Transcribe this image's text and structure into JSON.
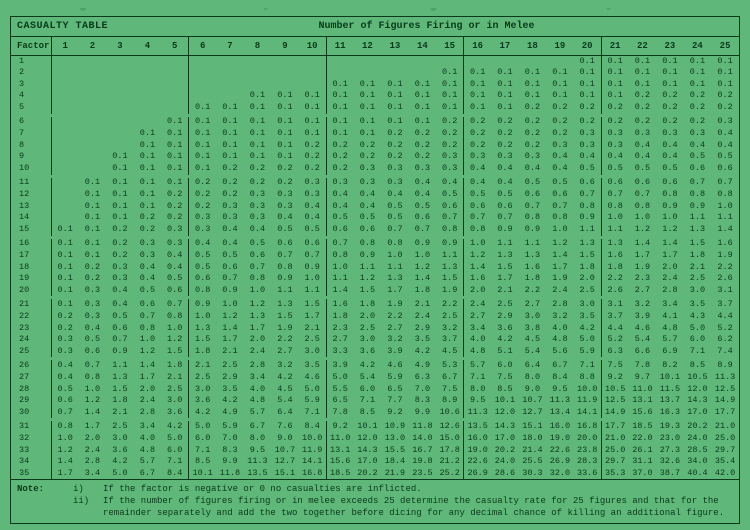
{
  "title_left": "CASUALTY TABLE",
  "title_center": "Number of Figures Firing or in Melee",
  "factor_label": "Factor",
  "columns": [
    1,
    2,
    3,
    4,
    5,
    6,
    7,
    8,
    9,
    10,
    11,
    12,
    13,
    14,
    15,
    16,
    17,
    18,
    19,
    20,
    21,
    22,
    23,
    24,
    25
  ],
  "rows": [
    {
      "f": 1,
      "v": [
        "",
        "",
        "",
        "",
        "",
        "",
        "",
        "",
        "",
        "",
        "",
        "",
        "",
        "",
        "",
        "",
        "",
        "",
        "",
        "0.1",
        "0.1",
        "0.1",
        "0.1",
        "0.1",
        "0.1"
      ]
    },
    {
      "f": 2,
      "v": [
        "",
        "",
        "",
        "",
        "",
        "",
        "",
        "",
        "",
        "",
        "",
        "",
        "",
        "",
        "0.1",
        "0.1",
        "0.1",
        "0.1",
        "0.1",
        "0.1",
        "0.1",
        "0.1",
        "0.1",
        "0.1",
        "0.1"
      ]
    },
    {
      "f": 3,
      "v": [
        "",
        "",
        "",
        "",
        "",
        "",
        "",
        "",
        "",
        "",
        "0.1",
        "0.1",
        "0.1",
        "0.1",
        "0.1",
        "0.1",
        "0.1",
        "0.1",
        "0.1",
        "0.1",
        "0.1",
        "0.1",
        "0.1",
        "0.1",
        "0.1"
      ]
    },
    {
      "f": 4,
      "v": [
        "",
        "",
        "",
        "",
        "",
        "",
        "",
        "0.1",
        "0.1",
        "0.1",
        "0.1",
        "0.1",
        "0.1",
        "0.1",
        "0.1",
        "0.1",
        "0.1",
        "0.1",
        "0.1",
        "0.1",
        "0.1",
        "0.2",
        "0.2",
        "0.2",
        "0.2"
      ]
    },
    {
      "f": 5,
      "v": [
        "",
        "",
        "",
        "",
        "",
        "0.1",
        "0.1",
        "0.1",
        "0.1",
        "0.1",
        "0.1",
        "0.1",
        "0.1",
        "0.1",
        "0.1",
        "0.1",
        "0.1",
        "0.2",
        "0.2",
        "0.2",
        "0.2",
        "0.2",
        "0.2",
        "0.2",
        "0.2"
      ]
    },
    {
      "f": 6,
      "v": [
        "",
        "",
        "",
        "",
        "0.1",
        "0.1",
        "0.1",
        "0.1",
        "0.1",
        "0.1",
        "0.1",
        "0.1",
        "0.1",
        "0.1",
        "0.2",
        "0.2",
        "0.2",
        "0.2",
        "0.2",
        "0.2",
        "0.2",
        "0.2",
        "0.2",
        "0.2",
        "0.3"
      ]
    },
    {
      "f": 7,
      "v": [
        "",
        "",
        "",
        "0.1",
        "0.1",
        "0.1",
        "0.1",
        "0.1",
        "0.1",
        "0.1",
        "0.1",
        "0.1",
        "0.2",
        "0.2",
        "0.2",
        "0.2",
        "0.2",
        "0.2",
        "0.2",
        "0.3",
        "0.3",
        "0.3",
        "0.3",
        "0.3",
        "0.4"
      ]
    },
    {
      "f": 8,
      "v": [
        "",
        "",
        "",
        "0.1",
        "0.1",
        "0.1",
        "0.1",
        "0.1",
        "0.1",
        "0.2",
        "0.2",
        "0.2",
        "0.2",
        "0.2",
        "0.2",
        "0.2",
        "0.2",
        "0.2",
        "0.3",
        "0.3",
        "0.3",
        "0.4",
        "0.4",
        "0.4",
        "0.4"
      ]
    },
    {
      "f": 9,
      "v": [
        "",
        "",
        "0.1",
        "0.1",
        "0.1",
        "0.1",
        "0.1",
        "0.1",
        "0.1",
        "0.2",
        "0.2",
        "0.2",
        "0.2",
        "0.2",
        "0.3",
        "0.3",
        "0.3",
        "0.3",
        "0.4",
        "0.4",
        "0.4",
        "0.4",
        "0.4",
        "0.5",
        "0.5"
      ]
    },
    {
      "f": 10,
      "v": [
        "",
        "",
        "0.1",
        "0.1",
        "0.1",
        "0.1",
        "0.2",
        "0.2",
        "0.2",
        "0.2",
        "0.2",
        "0.3",
        "0.3",
        "0.3",
        "0.3",
        "0.4",
        "0.4",
        "0.4",
        "0.4",
        "0.5",
        "0.5",
        "0.5",
        "0.5",
        "0.6",
        "0.6"
      ]
    },
    {
      "f": 11,
      "v": [
        "",
        "0.1",
        "0.1",
        "0.1",
        "0.1",
        "0.2",
        "0.2",
        "0.2",
        "0.2",
        "0.3",
        "0.3",
        "0.3",
        "0.3",
        "0.4",
        "0.4",
        "0.4",
        "0.4",
        "0.5",
        "0.5",
        "0.6",
        "0.6",
        "0.6",
        "0.6",
        "0.7",
        "0.7"
      ]
    },
    {
      "f": 12,
      "v": [
        "",
        "0.1",
        "0.1",
        "0.1",
        "0.2",
        "0.2",
        "0.2",
        "0.3",
        "0.3",
        "0.3",
        "0.4",
        "0.4",
        "0.4",
        "0.4",
        "0.5",
        "0.5",
        "0.5",
        "0.6",
        "0.6",
        "0.7",
        "0.7",
        "0.7",
        "0.8",
        "0.8",
        "0.8"
      ]
    },
    {
      "f": 13,
      "v": [
        "",
        "0.1",
        "0.1",
        "0.1",
        "0.2",
        "0.2",
        "0.3",
        "0.3",
        "0.3",
        "0.4",
        "0.4",
        "0.4",
        "0.5",
        "0.5",
        "0.6",
        "0.6",
        "0.6",
        "0.7",
        "0.7",
        "0.8",
        "0.8",
        "0.8",
        "0.9",
        "0.9",
        "1.0"
      ]
    },
    {
      "f": 14,
      "v": [
        "",
        "0.1",
        "0.1",
        "0.2",
        "0.2",
        "0.3",
        "0.3",
        "0.3",
        "0.4",
        "0.4",
        "0.5",
        "0.5",
        "0.5",
        "0.6",
        "0.7",
        "0.7",
        "0.7",
        "0.8",
        "0.8",
        "0.9",
        "1.0",
        "1.0",
        "1.0",
        "1.1",
        "1.1"
      ]
    },
    {
      "f": 15,
      "v": [
        "0.1",
        "0.1",
        "0.2",
        "0.2",
        "0.3",
        "0.3",
        "0.4",
        "0.4",
        "0.5",
        "0.5",
        "0.6",
        "0.6",
        "0.7",
        "0.7",
        "0.8",
        "0.8",
        "0.9",
        "0.9",
        "1.0",
        "1.1",
        "1.1",
        "1.2",
        "1.2",
        "1.3",
        "1.4"
      ]
    },
    {
      "f": 16,
      "v": [
        "0.1",
        "0.1",
        "0.2",
        "0.3",
        "0.3",
        "0.4",
        "0.4",
        "0.5",
        "0.6",
        "0.6",
        "0.7",
        "0.8",
        "0.8",
        "0.9",
        "0.9",
        "1.0",
        "1.1",
        "1.1",
        "1.2",
        "1.3",
        "1.3",
        "1.4",
        "1.4",
        "1.5",
        "1.6"
      ]
    },
    {
      "f": 17,
      "v": [
        "0.1",
        "0.1",
        "0.2",
        "0.3",
        "0.4",
        "0.5",
        "0.5",
        "0.6",
        "0.7",
        "0.7",
        "0.8",
        "0.9",
        "1.0",
        "1.0",
        "1.1",
        "1.2",
        "1.3",
        "1.3",
        "1.4",
        "1.5",
        "1.6",
        "1.7",
        "1.7",
        "1.8",
        "1.9"
      ]
    },
    {
      "f": 18,
      "v": [
        "0.1",
        "0.2",
        "0.3",
        "0.4",
        "0.4",
        "0.5",
        "0.6",
        "0.7",
        "0.8",
        "0.9",
        "1.0",
        "1.1",
        "1.1",
        "1.2",
        "1.3",
        "1.4",
        "1.5",
        "1.6",
        "1.7",
        "1.8",
        "1.8",
        "1.9",
        "2.0",
        "2.1",
        "2.2"
      ]
    },
    {
      "f": 19,
      "v": [
        "0.1",
        "0.2",
        "0.3",
        "0.4",
        "0.5",
        "0.6",
        "0.7",
        "0.8",
        "0.9",
        "1.0",
        "1.1",
        "1.2",
        "1.3",
        "1.4",
        "1.5",
        "1.6",
        "1.7",
        "1.8",
        "1.9",
        "2.0",
        "2.2",
        "2.3",
        "2.4",
        "2.5",
        "2.6"
      ]
    },
    {
      "f": 20,
      "v": [
        "0.1",
        "0.3",
        "0.4",
        "0.5",
        "0.6",
        "0.8",
        "0.9",
        "1.0",
        "1.1",
        "1.1",
        "1.4",
        "1.5",
        "1.7",
        "1.8",
        "1.9",
        "2.0",
        "2.1",
        "2.2",
        "2.4",
        "2.5",
        "2.6",
        "2.7",
        "2.8",
        "3.0",
        "3.1"
      ]
    },
    {
      "f": 21,
      "v": [
        "0.1",
        "0.3",
        "0.4",
        "0.6",
        "0.7",
        "0.9",
        "1.0",
        "1.2",
        "1.3",
        "1.5",
        "1.6",
        "1.8",
        "1.9",
        "2.1",
        "2.2",
        "2.4",
        "2.5",
        "2.7",
        "2.8",
        "3.0",
        "3.1",
        "3.2",
        "3.4",
        "3.5",
        "3.7"
      ]
    },
    {
      "f": 22,
      "v": [
        "0.2",
        "0.3",
        "0.5",
        "0.7",
        "0.8",
        "1.0",
        "1.2",
        "1.3",
        "1.5",
        "1.7",
        "1.8",
        "2.0",
        "2.2",
        "2.4",
        "2.5",
        "2.7",
        "2.9",
        "3.0",
        "3.2",
        "3.5",
        "3.7",
        "3.9",
        "4.1",
        "4.3",
        "4.4"
      ]
    },
    {
      "f": 23,
      "v": [
        "0.2",
        "0.4",
        "0.6",
        "0.8",
        "1.0",
        "1.3",
        "1.4",
        "1.7",
        "1.9",
        "2.1",
        "2.3",
        "2.5",
        "2.7",
        "2.9",
        "3.2",
        "3.4",
        "3.6",
        "3.8",
        "4.0",
        "4.2",
        "4.4",
        "4.6",
        "4.8",
        "5.0",
        "5.2"
      ]
    },
    {
      "f": 24,
      "v": [
        "0.3",
        "0.5",
        "0.7",
        "1.0",
        "1.2",
        "1.5",
        "1.7",
        "2.0",
        "2.2",
        "2.5",
        "2.7",
        "3.0",
        "3.2",
        "3.5",
        "3.7",
        "4.0",
        "4.2",
        "4.5",
        "4.8",
        "5.0",
        "5.2",
        "5.4",
        "5.7",
        "6.0",
        "6.2"
      ]
    },
    {
      "f": 25,
      "v": [
        "0.3",
        "0.6",
        "0.9",
        "1.2",
        "1.5",
        "1.8",
        "2.1",
        "2.4",
        "2.7",
        "3.0",
        "3.3",
        "3.6",
        "3.9",
        "4.2",
        "4.5",
        "4.8",
        "5.1",
        "5.4",
        "5.6",
        "5.9",
        "6.3",
        "6.6",
        "6.9",
        "7.1",
        "7.4"
      ]
    },
    {
      "f": 26,
      "v": [
        "0.4",
        "0.7",
        "1.1",
        "1.4",
        "1.8",
        "2.1",
        "2.5",
        "2.8",
        "3.2",
        "3.5",
        "3.9",
        "4.2",
        "4.6",
        "4.9",
        "5.3",
        "5.7",
        "6.0",
        "6.4",
        "6.7",
        "7.1",
        "7.5",
        "7.8",
        "8.2",
        "8.5",
        "8.9"
      ]
    },
    {
      "f": 27,
      "v": [
        "0.4",
        "0.8",
        "1.3",
        "1.7",
        "2.1",
        "2.5",
        "2.9",
        "3.4",
        "4.2",
        "4.6",
        "5.0",
        "5.4",
        "5.9",
        "6.3",
        "6.7",
        "7.1",
        "7.5",
        "8.0",
        "8.4",
        "8.8",
        "9.2",
        "9.7",
        "10.1",
        "10.5",
        "11.3"
      ]
    },
    {
      "f": 28,
      "v": [
        "0.5",
        "1.0",
        "1.5",
        "2.0",
        "2.5",
        "3.0",
        "3.5",
        "4.0",
        "4.5",
        "5.0",
        "5.5",
        "6.0",
        "6.5",
        "7.0",
        "7.5",
        "8.0",
        "8.5",
        "9.0",
        "9.5",
        "10.0",
        "10.5",
        "11.0",
        "11.5",
        "12.0",
        "12.5"
      ]
    },
    {
      "f": 29,
      "v": [
        "0.6",
        "1.2",
        "1.8",
        "2.4",
        "3.0",
        "3.6",
        "4.2",
        "4.8",
        "5.4",
        "5.9",
        "6.5",
        "7.1",
        "7.7",
        "8.3",
        "8.9",
        "9.5",
        "10.1",
        "10.7",
        "11.3",
        "11.9",
        "12.5",
        "13.1",
        "13.7",
        "14.3",
        "14.9"
      ]
    },
    {
      "f": 30,
      "v": [
        "0.7",
        "1.4",
        "2.1",
        "2.8",
        "3.6",
        "4.2",
        "4.9",
        "5.7",
        "6.4",
        "7.1",
        "7.8",
        "8.5",
        "9.2",
        "9.9",
        "10.6",
        "11.3",
        "12.0",
        "12.7",
        "13.4",
        "14.1",
        "14.9",
        "15.6",
        "16.3",
        "17.0",
        "17.7"
      ]
    },
    {
      "f": 31,
      "v": [
        "0.8",
        "1.7",
        "2.5",
        "3.4",
        "4.2",
        "5.0",
        "5.9",
        "6.7",
        "7.6",
        "8.4",
        "9.2",
        "10.1",
        "10.9",
        "11.8",
        "12.6",
        "13.5",
        "14.3",
        "15.1",
        "16.0",
        "16.8",
        "17.7",
        "18.5",
        "19.3",
        "20.2",
        "21.0"
      ]
    },
    {
      "f": 32,
      "v": [
        "1.0",
        "2.0",
        "3.0",
        "4.0",
        "5.0",
        "6.0",
        "7.0",
        "8.0",
        "9.0",
        "10.0",
        "11.0",
        "12.0",
        "13.0",
        "14.0",
        "15.0",
        "16.0",
        "17.0",
        "18.0",
        "19.0",
        "20.0",
        "21.0",
        "22.0",
        "23.0",
        "24.0",
        "25.0"
      ]
    },
    {
      "f": 33,
      "v": [
        "1.2",
        "2.4",
        "3.6",
        "4.8",
        "6.0",
        "7.1",
        "8.3",
        "9.5",
        "10.7",
        "11.9",
        "13.1",
        "14.3",
        "15.5",
        "16.7",
        "17.8",
        "19.0",
        "20.2",
        "21.4",
        "22.6",
        "23.8",
        "25.0",
        "26.1",
        "27.3",
        "28.5",
        "29.7"
      ]
    },
    {
      "f": 34,
      "v": [
        "1.4",
        "2.8",
        "4.2",
        "5.7",
        "7.1",
        "8.5",
        "9.9",
        "11.3",
        "12.7",
        "14.1",
        "15.6",
        "17.0",
        "18.4",
        "19.8",
        "21.2",
        "22.6",
        "24.0",
        "25.5",
        "26.9",
        "28.3",
        "29.7",
        "31.1",
        "32.6",
        "34.0",
        "35.4"
      ]
    },
    {
      "f": 35,
      "v": [
        "1.7",
        "3.4",
        "5.0",
        "6.7",
        "8.4",
        "10.1",
        "11.8",
        "13.5",
        "15.1",
        "16.8",
        "18.5",
        "20.2",
        "21.9",
        "23.5",
        "25.2",
        "26.9",
        "28.6",
        "30.3",
        "32.0",
        "33.6",
        "35.3",
        "37.0",
        "38.7",
        "40.4",
        "42.0"
      ]
    }
  ],
  "note_label": "Note:",
  "notes": [
    {
      "num": "i)",
      "txt": "If the factor is negative or 0 no casualties are inflicted."
    },
    {
      "num": "ii)",
      "txt": "If the number of figures firing or in melee exceeds 25 determine the casualty rate for 25 figures and that for the remainder separately and add the two together before dicing for any decimal chance of killing an additional figure."
    }
  ]
}
